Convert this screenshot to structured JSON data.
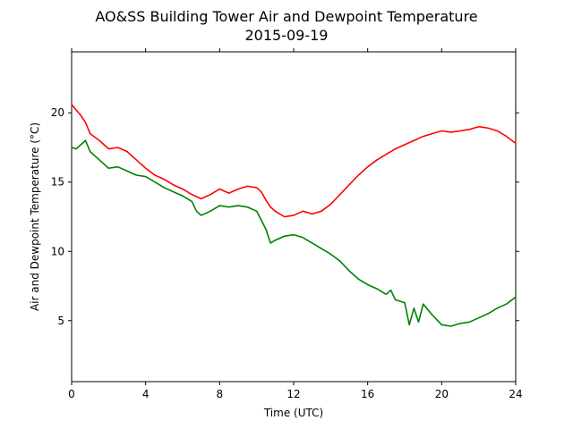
{
  "chart_data": {
    "type": "line",
    "title": "AO&SS Building Tower Air and Dewpoint Temperature",
    "subtitle": "2015-09-19",
    "xlabel": "Time (UTC)",
    "ylabel": "Air and Dewpoint Temperature (°C)",
    "xlim": [
      0,
      24
    ],
    "ylim": [
      0.6,
      24.4
    ],
    "xticks": [
      0,
      4,
      8,
      12,
      16,
      20,
      24
    ],
    "yticks": [
      5,
      10,
      15,
      20
    ],
    "grid": false,
    "legend": "none",
    "series": [
      {
        "color": "#ff0000",
        "x": [
          0,
          0.25,
          0.5,
          0.75,
          1,
          1.5,
          2,
          2.5,
          3,
          3.5,
          4,
          4.5,
          5,
          5.5,
          6,
          6.5,
          7,
          7.5,
          8,
          8.5,
          9,
          9.5,
          10,
          10.25,
          10.5,
          10.75,
          11,
          11.5,
          12,
          12.5,
          13,
          13.5,
          14,
          14.5,
          15,
          15.5,
          16,
          16.5,
          17,
          17.5,
          18,
          18.5,
          19,
          19.5,
          20,
          20.5,
          21,
          21.5,
          22,
          22.5,
          23,
          23.5,
          24
        ],
        "y": [
          20.6,
          20.2,
          19.8,
          19.3,
          18.5,
          18.0,
          17.4,
          17.5,
          17.2,
          16.6,
          16.0,
          15.5,
          15.2,
          14.8,
          14.5,
          14.1,
          13.8,
          14.1,
          14.5,
          14.2,
          14.5,
          14.7,
          14.6,
          14.3,
          13.7,
          13.2,
          12.9,
          12.5,
          12.6,
          12.9,
          12.7,
          12.9,
          13.4,
          14.1,
          14.8,
          15.5,
          16.1,
          16.6,
          17.0,
          17.4,
          17.7,
          18.0,
          18.3,
          18.5,
          18.7,
          18.6,
          18.7,
          18.8,
          19.0,
          18.9,
          18.7,
          18.3,
          17.8
        ]
      },
      {
        "color": "#008000",
        "x": [
          0,
          0.25,
          0.5,
          0.75,
          1,
          1.5,
          2,
          2.5,
          3,
          3.5,
          4,
          4.5,
          5,
          5.5,
          6,
          6.5,
          6.75,
          7,
          7.5,
          8,
          8.5,
          9,
          9.5,
          10,
          10.5,
          10.75,
          11,
          11.5,
          12,
          12.5,
          13,
          13.5,
          14,
          14.5,
          15,
          15.5,
          16,
          16.5,
          17,
          17.25,
          17.5,
          18,
          18.25,
          18.5,
          18.75,
          19,
          19.5,
          20,
          20.5,
          21,
          21.5,
          22,
          22.5,
          23,
          23.5,
          24
        ],
        "y": [
          17.5,
          17.4,
          17.7,
          18.0,
          17.2,
          16.6,
          16.0,
          16.1,
          15.8,
          15.5,
          15.4,
          15.0,
          14.6,
          14.3,
          14.0,
          13.6,
          12.9,
          12.6,
          12.9,
          13.3,
          13.2,
          13.3,
          13.2,
          12.9,
          11.6,
          10.6,
          10.8,
          11.1,
          11.2,
          11.0,
          10.6,
          10.2,
          9.8,
          9.3,
          8.6,
          8.0,
          7.6,
          7.3,
          6.9,
          7.2,
          6.5,
          6.3,
          4.7,
          5.9,
          4.9,
          6.2,
          5.4,
          4.7,
          4.6,
          4.8,
          4.9,
          5.2,
          5.5,
          5.9,
          6.2,
          6.7
        ]
      }
    ]
  }
}
